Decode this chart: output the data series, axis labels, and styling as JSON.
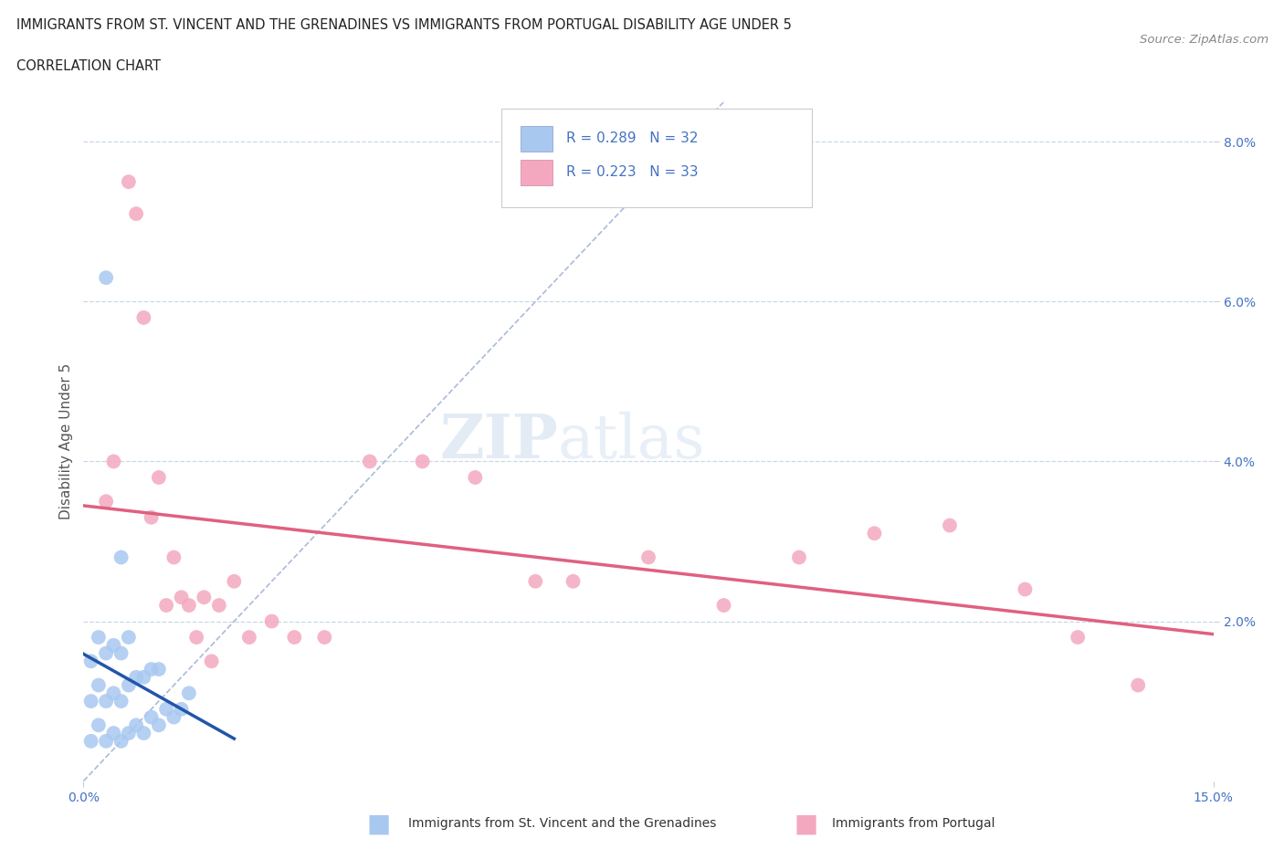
{
  "title_line1": "IMMIGRANTS FROM ST. VINCENT AND THE GRENADINES VS IMMIGRANTS FROM PORTUGAL DISABILITY AGE UNDER 5",
  "title_line2": "CORRELATION CHART",
  "source_text": "Source: ZipAtlas.com",
  "ylabel": "Disability Age Under 5",
  "xmin": 0.0,
  "xmax": 0.15,
  "ymin": 0.0,
  "ymax": 0.085,
  "color_vincent": "#a8c8f0",
  "color_portugal": "#f4a8c0",
  "line_color_vincent": "#2255aa",
  "line_color_portugal": "#e06080",
  "diag_color": "#aabbd8",
  "background_color": "#ffffff",
  "grid_color": "#c8d8e8",
  "vincent_x": [
    0.001,
    0.001,
    0.001,
    0.002,
    0.002,
    0.002,
    0.003,
    0.003,
    0.003,
    0.004,
    0.004,
    0.004,
    0.005,
    0.005,
    0.005,
    0.006,
    0.006,
    0.006,
    0.007,
    0.007,
    0.008,
    0.008,
    0.009,
    0.009,
    0.01,
    0.01,
    0.011,
    0.012,
    0.013,
    0.014,
    0.005,
    0.003
  ],
  "vincent_y": [
    0.005,
    0.01,
    0.015,
    0.007,
    0.012,
    0.018,
    0.005,
    0.01,
    0.016,
    0.006,
    0.011,
    0.017,
    0.005,
    0.01,
    0.016,
    0.006,
    0.012,
    0.018,
    0.007,
    0.013,
    0.006,
    0.013,
    0.008,
    0.014,
    0.007,
    0.014,
    0.009,
    0.008,
    0.009,
    0.011,
    0.028,
    0.063
  ],
  "portugal_x": [
    0.003,
    0.004,
    0.006,
    0.007,
    0.008,
    0.009,
    0.01,
    0.011,
    0.012,
    0.013,
    0.014,
    0.015,
    0.016,
    0.017,
    0.018,
    0.02,
    0.022,
    0.025,
    0.028,
    0.032,
    0.038,
    0.045,
    0.052,
    0.06,
    0.065,
    0.075,
    0.085,
    0.095,
    0.105,
    0.115,
    0.125,
    0.132,
    0.14
  ],
  "portugal_y": [
    0.035,
    0.04,
    0.075,
    0.071,
    0.058,
    0.033,
    0.038,
    0.022,
    0.028,
    0.023,
    0.022,
    0.018,
    0.023,
    0.015,
    0.022,
    0.025,
    0.018,
    0.02,
    0.018,
    0.018,
    0.04,
    0.04,
    0.038,
    0.025,
    0.025,
    0.028,
    0.022,
    0.028,
    0.031,
    0.032,
    0.024,
    0.018,
    0.012
  ]
}
